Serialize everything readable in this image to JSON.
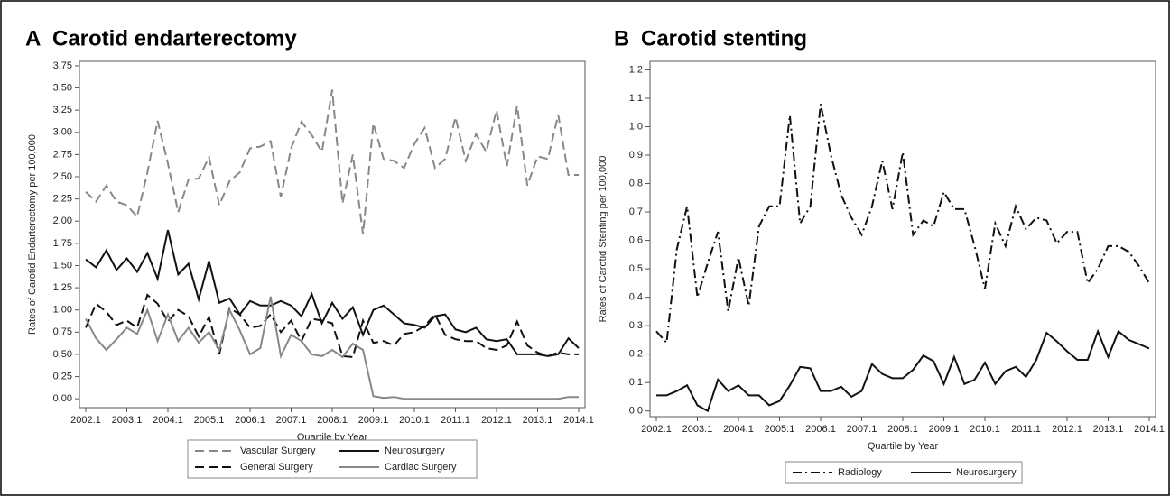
{
  "chart_data": [
    {
      "type": "line",
      "panel": "A",
      "title": "Carotid endarterectomy",
      "x_label": "Quartile by Year",
      "y_label": "Rates of Carotid Endarterectomy per 100,000",
      "categories": [
        "2002:1",
        null,
        null,
        null,
        "2003:1",
        null,
        null,
        null,
        "2004:1",
        null,
        null,
        null,
        "2005:1",
        null,
        null,
        null,
        "2006:1",
        null,
        null,
        null,
        "2007:1",
        null,
        null,
        null,
        "2008:1",
        null,
        null,
        null,
        "2009:1",
        null,
        null,
        null,
        "2010:1",
        null,
        null,
        null,
        "2011:1",
        null,
        null,
        null,
        "2012:1",
        null,
        null,
        null,
        "2013:1",
        null,
        null,
        null,
        "2014:1"
      ],
      "ylim": [
        -0.1,
        3.8
      ],
      "yticks": [
        {
          "value": 0,
          "label": "0.00"
        },
        0.25,
        {
          "value": 0.5,
          "label": "0.50"
        },
        0.75,
        {
          "value": 1,
          "label": "1.00"
        },
        1.25,
        {
          "value": 1.5,
          "label": "1.50"
        },
        1.75,
        {
          "value": 2,
          "label": "2.00"
        },
        2.25,
        {
          "value": 2.5,
          "label": "2.50"
        },
        2.75,
        {
          "value": 3,
          "label": "3.00"
        },
        3.25,
        {
          "value": 3.5,
          "label": "3.50"
        },
        3.75
      ],
      "series": [
        {
          "name": "Vascular Surgery",
          "color": "#888888",
          "dash": "dashed",
          "values": [
            2.33,
            2.22,
            2.4,
            2.22,
            2.18,
            2.05,
            2.55,
            3.13,
            2.65,
            2.1,
            2.47,
            2.48,
            2.72,
            2.18,
            2.45,
            2.55,
            2.82,
            2.84,
            2.9,
            2.27,
            2.82,
            3.12,
            2.97,
            2.78,
            3.48,
            2.2,
            2.75,
            1.85,
            3.1,
            2.7,
            2.68,
            2.6,
            2.87,
            3.05,
            2.6,
            2.7,
            3.17,
            2.68,
            2.98,
            2.78,
            3.25,
            2.62,
            3.3,
            2.4,
            2.73,
            2.7,
            3.2,
            2.52,
            2.52
          ]
        },
        {
          "name": "Neurosurgery",
          "color": "#111111",
          "dash": "solid",
          "values": [
            1.57,
            1.48,
            1.67,
            1.45,
            1.58,
            1.43,
            1.64,
            1.35,
            1.9,
            1.4,
            1.52,
            1.12,
            1.55,
            1.08,
            1.13,
            0.95,
            1.1,
            1.05,
            1.05,
            1.1,
            1.05,
            0.93,
            1.18,
            0.85,
            1.08,
            0.9,
            1.03,
            0.72,
            1.0,
            1.05,
            0.95,
            0.85,
            0.83,
            0.8,
            0.93,
            0.95,
            0.78,
            0.75,
            0.8,
            0.67,
            0.65,
            0.67,
            0.5,
            0.5,
            0.5,
            0.48,
            0.5,
            0.68,
            0.57
          ]
        },
        {
          "name": "General Surgery",
          "color": "#111111",
          "dash": "dashed",
          "values": [
            0.8,
            1.07,
            0.98,
            0.83,
            0.88,
            0.8,
            1.17,
            1.07,
            0.87,
            1.0,
            0.93,
            0.7,
            0.92,
            0.5,
            1.02,
            0.95,
            0.8,
            0.82,
            0.95,
            0.75,
            0.88,
            0.65,
            0.9,
            0.88,
            0.85,
            0.48,
            0.47,
            0.88,
            0.63,
            0.65,
            0.6,
            0.73,
            0.75,
            0.82,
            0.95,
            0.72,
            0.67,
            0.65,
            0.65,
            0.57,
            0.55,
            0.6,
            0.87,
            0.6,
            0.52,
            0.48,
            0.52,
            0.5,
            0.5
          ]
        },
        {
          "name": "Cardiac Surgery",
          "color": "#888888",
          "dash": "solid",
          "values": [
            0.9,
            0.68,
            0.55,
            0.67,
            0.8,
            0.73,
            1.0,
            0.65,
            0.95,
            0.65,
            0.8,
            0.63,
            0.75,
            0.55,
            1.0,
            0.77,
            0.5,
            0.57,
            1.15,
            0.48,
            0.72,
            0.65,
            0.5,
            0.48,
            0.55,
            0.47,
            0.62,
            0.55,
            0.03,
            0.01,
            0.02,
            0,
            0,
            0,
            0,
            0,
            0,
            0,
            0,
            0,
            0,
            0,
            0,
            0,
            0,
            0,
            0,
            0.02,
            0.02
          ]
        }
      ]
    },
    {
      "type": "line",
      "panel": "B",
      "title": "Carotid stenting",
      "x_label": "Quartile by Year",
      "y_label": "Rates of Carotid Stenting per 100,000",
      "categories": [
        "2002:1",
        null,
        null,
        null,
        "2003:1",
        null,
        null,
        null,
        "2004:1",
        null,
        null,
        null,
        "2005:1",
        null,
        null,
        null,
        "2006:1",
        null,
        null,
        null,
        "2007:1",
        null,
        null,
        null,
        "2008:1",
        null,
        null,
        null,
        "2009:1",
        null,
        null,
        null,
        "2010:1",
        null,
        null,
        null,
        "2011:1",
        null,
        null,
        null,
        "2012:1",
        null,
        null,
        null,
        "2013:1",
        null,
        null,
        null,
        "2014:1"
      ],
      "ylim": [
        -0.02,
        1.23
      ],
      "yticks": [
        {
          "value": 0,
          "label": "0.0"
        },
        0.1,
        0.2,
        0.3,
        0.4,
        0.5,
        0.6,
        0.7,
        0.8,
        0.9,
        {
          "value": 1,
          "label": "1.0"
        },
        1.1,
        1.2
      ],
      "series": [
        {
          "name": "Radiology",
          "color": "#111111",
          "dash": "dashdot",
          "values": [
            0.28,
            0.24,
            0.57,
            0.72,
            0.4,
            0.52,
            0.63,
            0.35,
            0.54,
            0.37,
            0.65,
            0.72,
            0.72,
            1.04,
            0.66,
            0.72,
            1.08,
            0.9,
            0.76,
            0.68,
            0.62,
            0.72,
            0.88,
            0.71,
            0.91,
            0.62,
            0.67,
            0.65,
            0.77,
            0.71,
            0.71,
            0.58,
            0.43,
            0.66,
            0.58,
            0.72,
            0.64,
            0.68,
            0.67,
            0.59,
            0.63,
            0.63,
            0.45,
            0.5,
            0.58,
            0.58,
            0.56,
            0.51,
            0.45
          ]
        },
        {
          "name": "Neurosurgery",
          "color": "#111111",
          "dash": "solid",
          "values": [
            0.055,
            0.055,
            0.07,
            0.09,
            0.02,
            0,
            0.11,
            0.07,
            0.09,
            0.055,
            0.055,
            0.02,
            0.035,
            0.09,
            0.155,
            0.15,
            0.07,
            0.07,
            0.085,
            0.05,
            0.07,
            0.165,
            0.13,
            0.115,
            0.115,
            0.145,
            0.195,
            0.175,
            0.095,
            0.19,
            0.095,
            0.11,
            0.17,
            0.095,
            0.14,
            0.155,
            0.12,
            0.18,
            0.275,
            0.245,
            0.21,
            0.18,
            0.18,
            0.28,
            0.19,
            0.28,
            0.25,
            0.235,
            0.22
          ]
        }
      ]
    }
  ]
}
